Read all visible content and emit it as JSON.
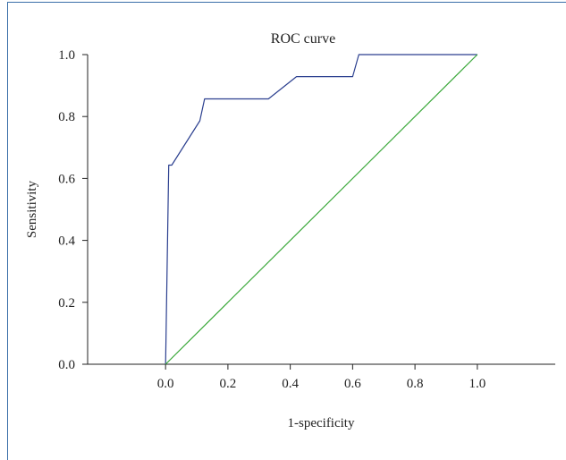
{
  "chart_data": {
    "type": "line",
    "title": "ROC curve",
    "xlabel": "1-specificity",
    "ylabel": "Sensitivity",
    "xlim": [
      -0.25,
      1.25
    ],
    "ylim": [
      0,
      1
    ],
    "x_ticks": [
      "0.0",
      "0.2",
      "0.4",
      "0.6",
      "0.8",
      "1.0"
    ],
    "x_tick_values": [
      0,
      0.2,
      0.4,
      0.6,
      0.8,
      1.0
    ],
    "y_ticks": [
      "0.0",
      "0.2",
      "0.4",
      "0.6",
      "0.8",
      "1.0"
    ],
    "y_tick_values": [
      0,
      0.2,
      0.4,
      0.6,
      0.8,
      1.0
    ],
    "grid": false,
    "series": [
      {
        "color": "#2b3f8f",
        "x": [
          0.0,
          0.01,
          0.02,
          0.11,
          0.125,
          0.33,
          0.42,
          0.6,
          0.62,
          1.0
        ],
        "y": [
          0.0,
          0.643,
          0.643,
          0.786,
          0.857,
          0.857,
          0.929,
          0.929,
          1.0,
          1.0
        ]
      },
      {
        "color": "#3aa83a",
        "x": [
          0.0,
          1.0
        ],
        "y": [
          0.0,
          1.0
        ]
      }
    ]
  }
}
